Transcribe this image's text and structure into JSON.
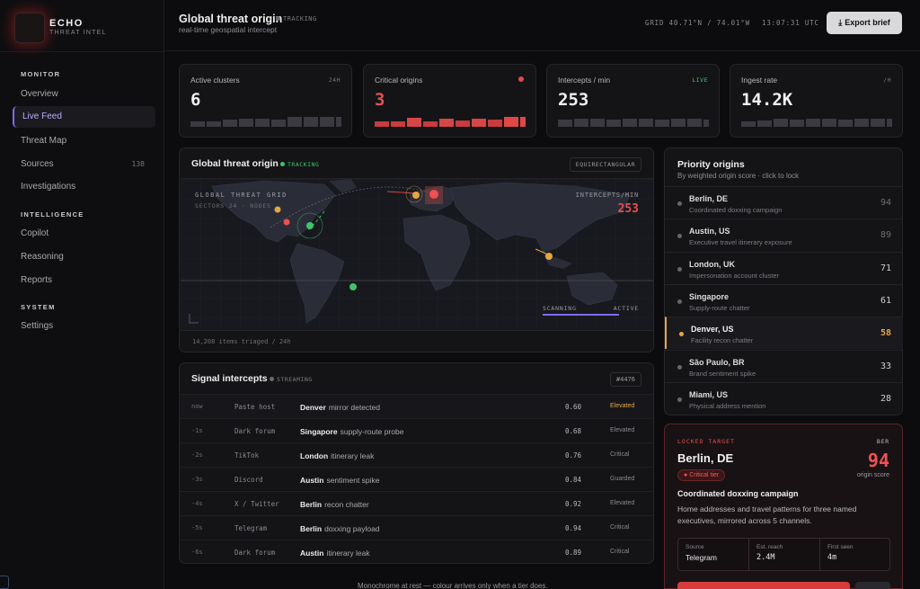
{
  "brand": {
    "name": "ECHO",
    "sub": "THREAT INTEL"
  },
  "sidebar": {
    "monitor_label": "MONITOR",
    "intelligence_label": "INTELLIGENCE",
    "system_label": "SYSTEM",
    "items": [
      {
        "label": "Overview"
      },
      {
        "label": "Live Feed"
      },
      {
        "label": "Threat Map"
      },
      {
        "label": "Sources",
        "count": "138"
      },
      {
        "label": "Investigations"
      },
      {
        "label": "Copilot"
      },
      {
        "label": "Reasoning"
      },
      {
        "label": "Reports"
      },
      {
        "label": "Settings"
      }
    ]
  },
  "header": {
    "title": "Global threat origin",
    "status": "TRACKING",
    "subtitle": "real-time geospatial intercept",
    "grid": "GRID 40.71°N / 74.01°W",
    "time": "13:07:31 UTC",
    "export_label": "Export brief",
    "export_icon": "download-icon"
  },
  "stats": [
    {
      "label": "Active clusters",
      "tag": "24H",
      "value": "6",
      "color": "#f2f2f3"
    },
    {
      "label": "Critical origins",
      "tag": "",
      "value": "3",
      "color": "#e25252"
    },
    {
      "label": "Intercepts / min",
      "tag": "LIVE",
      "value": "253",
      "color": "#f2f2f3"
    },
    {
      "label": "Ingest rate",
      "tag": "/H",
      "value": "14.2K",
      "color": "#f2f2f3"
    }
  ],
  "map_panel": {
    "title": "Global threat origin",
    "status": "TRACKING",
    "projection": "EQUIRECTANGULAR",
    "overlay_title": "GLOBAL THREAT GRID",
    "overlay_sub": "SECTORS 24 · NODES",
    "intercepts_label": "INTERCEPTS/MIN",
    "intercepts_value": "253",
    "scan_label": "SCANNING",
    "scan_state": "ACTIVE",
    "footer": "14,208 items triaged / 24h"
  },
  "signals": {
    "title": "Signal intercepts",
    "status": "STREAMING",
    "id": "#4476",
    "rows": [
      {
        "time": "now",
        "source": "Paste host",
        "city": "Denver",
        "text": "mirror detected",
        "score": "0.60",
        "level": "Elevated"
      },
      {
        "time": "-1s",
        "source": "Dark forum",
        "city": "Singapore",
        "text": "supply-route probe",
        "score": "0.68",
        "level": "Elevated"
      },
      {
        "time": "-2s",
        "source": "TikTok",
        "city": "London",
        "text": "itinerary leak",
        "score": "0.76",
        "level": "Critical"
      },
      {
        "time": "-3s",
        "source": "Discord",
        "city": "Austin",
        "text": "sentiment spike",
        "score": "0.84",
        "level": "Guarded"
      },
      {
        "time": "-4s",
        "source": "X / Twitter",
        "city": "Berlin",
        "text": "recon chatter",
        "score": "0.92",
        "level": "Elevated"
      },
      {
        "time": "-5s",
        "source": "Telegram",
        "city": "Berlin",
        "text": "doxxing payload",
        "score": "0.94",
        "level": "Critical"
      },
      {
        "time": "-6s",
        "source": "Dark forum",
        "city": "Austin",
        "text": "itinerary leak",
        "score": "0.89",
        "level": "Critical"
      }
    ]
  },
  "priority": {
    "title": "Priority origins",
    "subtitle": "By weighted origin score · click to lock",
    "items": [
      {
        "city": "Berlin, DE",
        "desc": "Coordinated doxxing campaign",
        "score": "94"
      },
      {
        "city": "Austin, US",
        "desc": "Executive travel itinerary exposure",
        "score": "89"
      },
      {
        "city": "London, UK",
        "desc": "Impersonation account cluster",
        "score": "71"
      },
      {
        "city": "Singapore",
        "desc": "Supply-route chatter",
        "score": "61"
      },
      {
        "city": "Denver, US",
        "desc": "Facility recon chatter",
        "score": "58"
      },
      {
        "city": "São Paulo, BR",
        "desc": "Brand sentiment spike",
        "score": "33"
      },
      {
        "city": "Miami, US",
        "desc": "Physical address mention",
        "score": "28"
      }
    ]
  },
  "locked": {
    "label": "LOCKED TARGET",
    "code": "BER",
    "city": "Berlin, DE",
    "tier": "Critical tier",
    "score": "94",
    "score_label": "origin score",
    "heading": "Coordinated doxxing campaign",
    "body": "Home addresses and travel patterns for three named executives, mirrored across 5 channels.",
    "facts": [
      {
        "label": "Source",
        "value": "Telegram"
      },
      {
        "label": "Est. reach",
        "value": "2.4M"
      },
      {
        "label": "First seen",
        "value": "4m"
      }
    ]
  },
  "footer_note": "Monochrome at rest — colour arrives only when a tier does."
}
